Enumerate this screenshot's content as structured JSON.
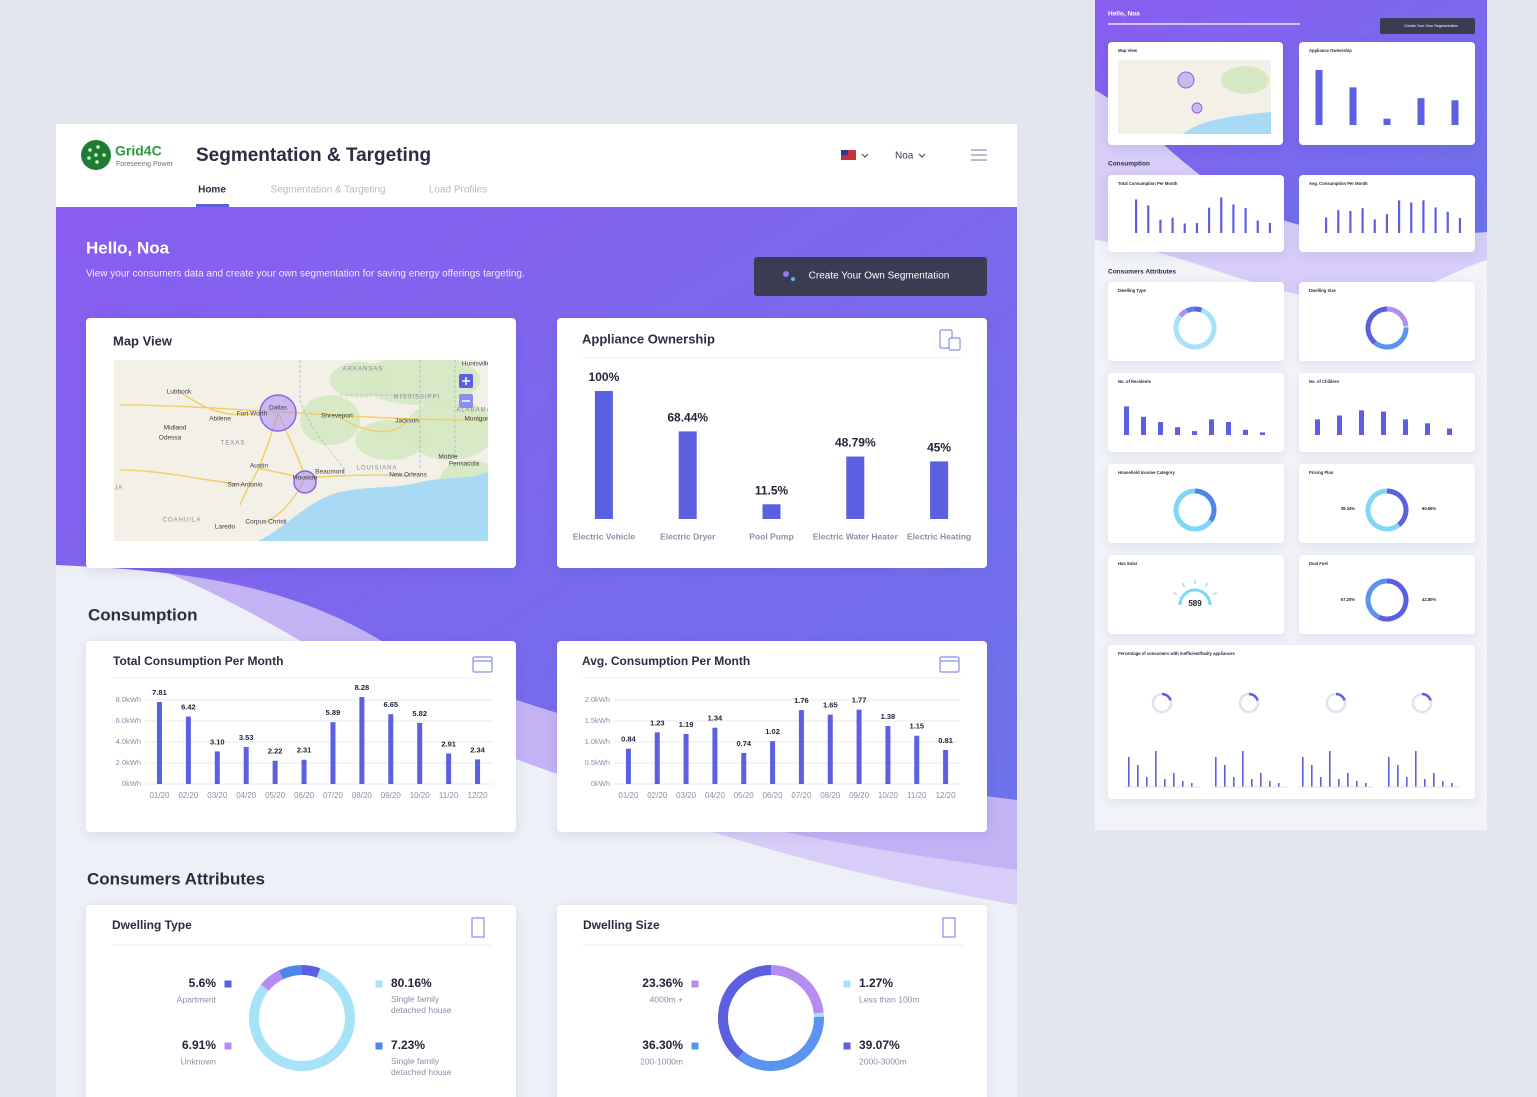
{
  "header": {
    "logo": "Grid4C",
    "tagline": "Foreseeing Power",
    "title": "Segmentation & Targeting",
    "user": "Noa",
    "tabs": [
      "Home",
      "Segmentation & Targeting",
      "Load Profiles"
    ]
  },
  "hero": {
    "greeting": "Hello, Noa",
    "subtitle": "View your consumers data and create your own segmentation for saving energy offerings targeting.",
    "button": "Create Your Own Segmentation"
  },
  "sections": {
    "consumption": "Consumption",
    "attributes": "Consumers Attributes"
  },
  "map": {
    "title": "Map View",
    "places": [
      "Dallas",
      "Fort Worth",
      "Houston",
      "Austin",
      "San Antonio",
      "TEXAS",
      "LOUISIANA",
      "ARKANSAS",
      "MISSISSIPPI",
      "ALABAMA",
      "Shreveport",
      "Jackson",
      "Lubbock",
      "Abilene",
      "Midland",
      "Odessa",
      "Beaumont",
      "New Orleans",
      "Mobile",
      "Pensacola",
      "Montgom",
      "Huntsville",
      "COAHUILA",
      "Laredo",
      "Corpus Christi",
      "UA"
    ]
  },
  "chart_data": [
    {
      "type": "bar",
      "title": "Appliance Ownership",
      "categories": [
        "Electric Vehicle",
        "Electric Dryer",
        "Pool Pump",
        "Electric Water Heater",
        "Electric Heating"
      ],
      "values": [
        100,
        68.44,
        11.5,
        48.79,
        45
      ],
      "value_labels": [
        "100%",
        "68.44%",
        "11.5%",
        "48.79%",
        "45%"
      ],
      "color": "#5b5fe0"
    },
    {
      "type": "bar",
      "title": "Total Consumption Per Month",
      "categories": [
        "01/20",
        "02/20",
        "03/20",
        "04/20",
        "05/20",
        "06/20",
        "07/20",
        "08/20",
        "09/20",
        "10/20",
        "11/20",
        "12/20"
      ],
      "values": [
        7.81,
        6.42,
        3.1,
        3.53,
        2.22,
        2.31,
        5.89,
        8.28,
        6.65,
        5.82,
        2.91,
        2.34
      ],
      "value_labels": [
        "7.81",
        "6.42",
        "3.10",
        "3.53",
        "2.22",
        "2.31",
        "5.89",
        "8.28",
        "6.65",
        "5.82",
        "2.91",
        "2.34"
      ],
      "ylim": [
        0,
        8.5
      ],
      "yticks": [
        {
          "value": 0,
          "label": "0kWh"
        },
        {
          "value": 2,
          "label": "2.0kWh"
        },
        {
          "value": 4,
          "label": "4.0kWh"
        },
        {
          "value": 6,
          "label": "6.0kWh"
        },
        {
          "value": 8,
          "label": "8.0kWh"
        }
      ],
      "grid": true,
      "color": "#5b5fe0"
    },
    {
      "type": "bar",
      "title": "Avg. Consumption Per Month",
      "categories": [
        "01/20",
        "02/20",
        "03/20",
        "04/20",
        "05/20",
        "06/20",
        "07/20",
        "08/20",
        "09/20",
        "10/20",
        "11/20",
        "12/20"
      ],
      "values": [
        0.84,
        1.23,
        1.19,
        1.34,
        0.74,
        1.02,
        1.76,
        1.65,
        1.77,
        1.38,
        1.15,
        0.81
      ],
      "ylim": [
        0,
        2
      ],
      "yticks": [
        {
          "value": 0,
          "label": "0kWh"
        },
        {
          "value": 0.5,
          "label": "0.5kWh"
        },
        {
          "value": 1,
          "label": "1.0kWh"
        },
        {
          "value": 1.5,
          "label": "1.5kWh"
        },
        {
          "value": 2,
          "label": "2.0kWh"
        }
      ],
      "grid": true,
      "color": "#5b5fe0"
    },
    {
      "type": "donut",
      "title": "Dwelling Type",
      "categories": [
        "Apartment",
        "Single family detached house",
        "Unknown",
        "Single family detached house"
      ],
      "values": [
        5.6,
        80.16,
        6.91,
        7.23
      ],
      "value_labels": [
        "5.6%",
        "80.16%",
        "6.91%",
        "7.23%"
      ],
      "colors": [
        "#5b5fe0",
        "#a6e3f8",
        "#b48cf2",
        "#4d86ea"
      ]
    },
    {
      "type": "donut",
      "title": "Dwelling Size",
      "categories": [
        "4000m +",
        "Less than 100m",
        "200-1000m",
        "2000-3000m"
      ],
      "values": [
        23.36,
        1.27,
        36.3,
        39.07
      ],
      "value_labels": [
        "23.36%",
        "1.27%",
        "36.30%",
        "39.07%"
      ],
      "colors": [
        "#b48cf2",
        "#a6e3f8",
        "#5b93f0",
        "#5b5fe0"
      ]
    },
    {
      "type": "donut",
      "title": "Pricing Plan",
      "values": [
        39.34,
        60.66
      ],
      "value_labels": [
        "39.34%",
        "60.66%"
      ],
      "colors": [
        "#5b5fe0",
        "#7fd6f5"
      ]
    },
    {
      "type": "donut",
      "title": "Dual Fuel",
      "values": [
        57.2,
        42.8
      ],
      "value_labels": [
        "57.20%",
        "42.80%"
      ],
      "colors": [
        "#5b5fe0",
        "#5b93f0"
      ]
    }
  ],
  "thumbnail": {
    "cards": [
      "No. of Residents",
      "No. of Children",
      "Household Income Category",
      "Has Solar",
      "Percentage of consumers with inefficient/faulty appliances"
    ],
    "has_solar": 589
  }
}
